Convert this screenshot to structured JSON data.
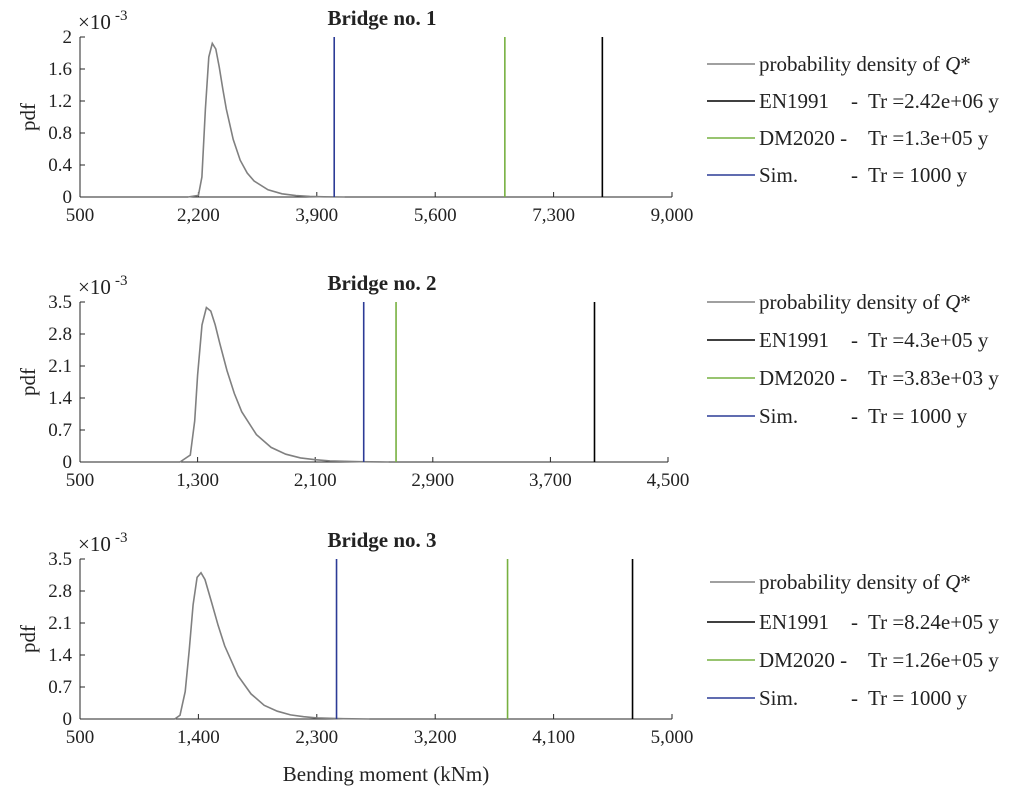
{
  "figure": {
    "xlabel": "Bending moment (kNm)"
  },
  "chart_data": [
    {
      "type": "line",
      "title": "Bridge no. 1",
      "ylabel": "pdf",
      "yscale_label": "×10",
      "yscale_exp": "-3",
      "xlim": [
        500,
        9000
      ],
      "ylim": [
        0,
        2
      ],
      "xticks": [
        "500",
        "2,200",
        "3,900",
        "5,600",
        "7,300",
        "9,000"
      ],
      "yticks": [
        "0",
        "0.4",
        "0.8",
        "1.2",
        "1.6",
        "2"
      ],
      "series": [
        {
          "name": "probability density of Q*",
          "color": "#808080",
          "x": [
            2050,
            2200,
            2250,
            2300,
            2350,
            2400,
            2450,
            2500,
            2550,
            2600,
            2700,
            2800,
            2900,
            3000,
            3200,
            3400,
            3600,
            3800,
            4000,
            4300
          ],
          "y": [
            0.0,
            0.02,
            0.25,
            1.1,
            1.75,
            1.92,
            1.85,
            1.62,
            1.35,
            1.1,
            0.72,
            0.46,
            0.3,
            0.2,
            0.09,
            0.04,
            0.018,
            0.008,
            0.003,
            0.0
          ]
        }
      ],
      "vlines": [
        {
          "name": "EN1991",
          "label": "Tr =2.42e+06 y",
          "x": 8000,
          "color": "#000000"
        },
        {
          "name": "DM2020 -",
          "label": "Tr =1.3e+05 y",
          "x": 6600,
          "color": "#77b040"
        },
        {
          "name": "Sim.",
          "label": "Tr = 1000 y",
          "x": 4150,
          "color": "#2c3b96"
        }
      ]
    },
    {
      "type": "line",
      "title": "Bridge no. 2",
      "ylabel": "pdf",
      "yscale_label": "×10",
      "yscale_exp": "-3",
      "xlim": [
        500,
        4500
      ],
      "ylim": [
        0,
        3.5
      ],
      "xticks": [
        "500",
        "1,300",
        "2,100",
        "2,900",
        "3,700",
        "4,500"
      ],
      "yticks": [
        "0",
        "0.7",
        "1.4",
        "2.1",
        "2.8",
        "3.5"
      ],
      "series": [
        {
          "name": "probability density of Q*",
          "color": "#808080",
          "x": [
            1180,
            1250,
            1280,
            1300,
            1330,
            1360,
            1390,
            1420,
            1450,
            1500,
            1550,
            1600,
            1700,
            1800,
            1900,
            2000,
            2100,
            2200,
            2400,
            2600
          ],
          "y": [
            0.0,
            0.15,
            0.9,
            1.9,
            3.0,
            3.38,
            3.3,
            3.0,
            2.6,
            2.0,
            1.5,
            1.1,
            0.6,
            0.32,
            0.17,
            0.09,
            0.05,
            0.025,
            0.006,
            0.0
          ]
        }
      ],
      "vlines": [
        {
          "name": "EN1991",
          "label": "Tr =4.3e+05 y",
          "x": 4000,
          "color": "#000000"
        },
        {
          "name": "DM2020 -",
          "label": "Tr =3.83e+03 y",
          "x": 2650,
          "color": "#77b040"
        },
        {
          "name": "Sim.",
          "label": "Tr = 1000 y",
          "x": 2430,
          "color": "#2c3b96"
        }
      ]
    },
    {
      "type": "line",
      "title": "Bridge no. 3",
      "ylabel": "pdf",
      "yscale_label": "×10",
      "yscale_exp": "-3",
      "xlim": [
        500,
        5000
      ],
      "ylim": [
        0,
        3.5
      ],
      "xticks": [
        "500",
        "1,400",
        "2,300",
        "3,200",
        "4,100",
        "5,000"
      ],
      "yticks": [
        "0",
        "0.7",
        "1.4",
        "2.1",
        "2.8",
        "3.5"
      ],
      "series": [
        {
          "name": "probability density of Q*",
          "color": "#808080",
          "x": [
            1220,
            1260,
            1300,
            1330,
            1360,
            1390,
            1420,
            1450,
            1500,
            1550,
            1600,
            1700,
            1800,
            1900,
            2000,
            2100,
            2200,
            2300,
            2500,
            2700
          ],
          "y": [
            0.0,
            0.08,
            0.6,
            1.5,
            2.5,
            3.1,
            3.2,
            3.05,
            2.55,
            2.05,
            1.6,
            0.95,
            0.55,
            0.3,
            0.17,
            0.09,
            0.05,
            0.025,
            0.007,
            0.0
          ]
        }
      ],
      "vlines": [
        {
          "name": "EN1991",
          "label": "Tr =8.24e+05 y",
          "x": 4700,
          "color": "#000000"
        },
        {
          "name": "DM2020 -",
          "label": "Tr =1.26e+05 y",
          "x": 3750,
          "color": "#77b040"
        },
        {
          "name": "Sim.",
          "label": "Tr = 1000 y",
          "x": 2450,
          "color": "#2c3b96"
        }
      ]
    }
  ]
}
